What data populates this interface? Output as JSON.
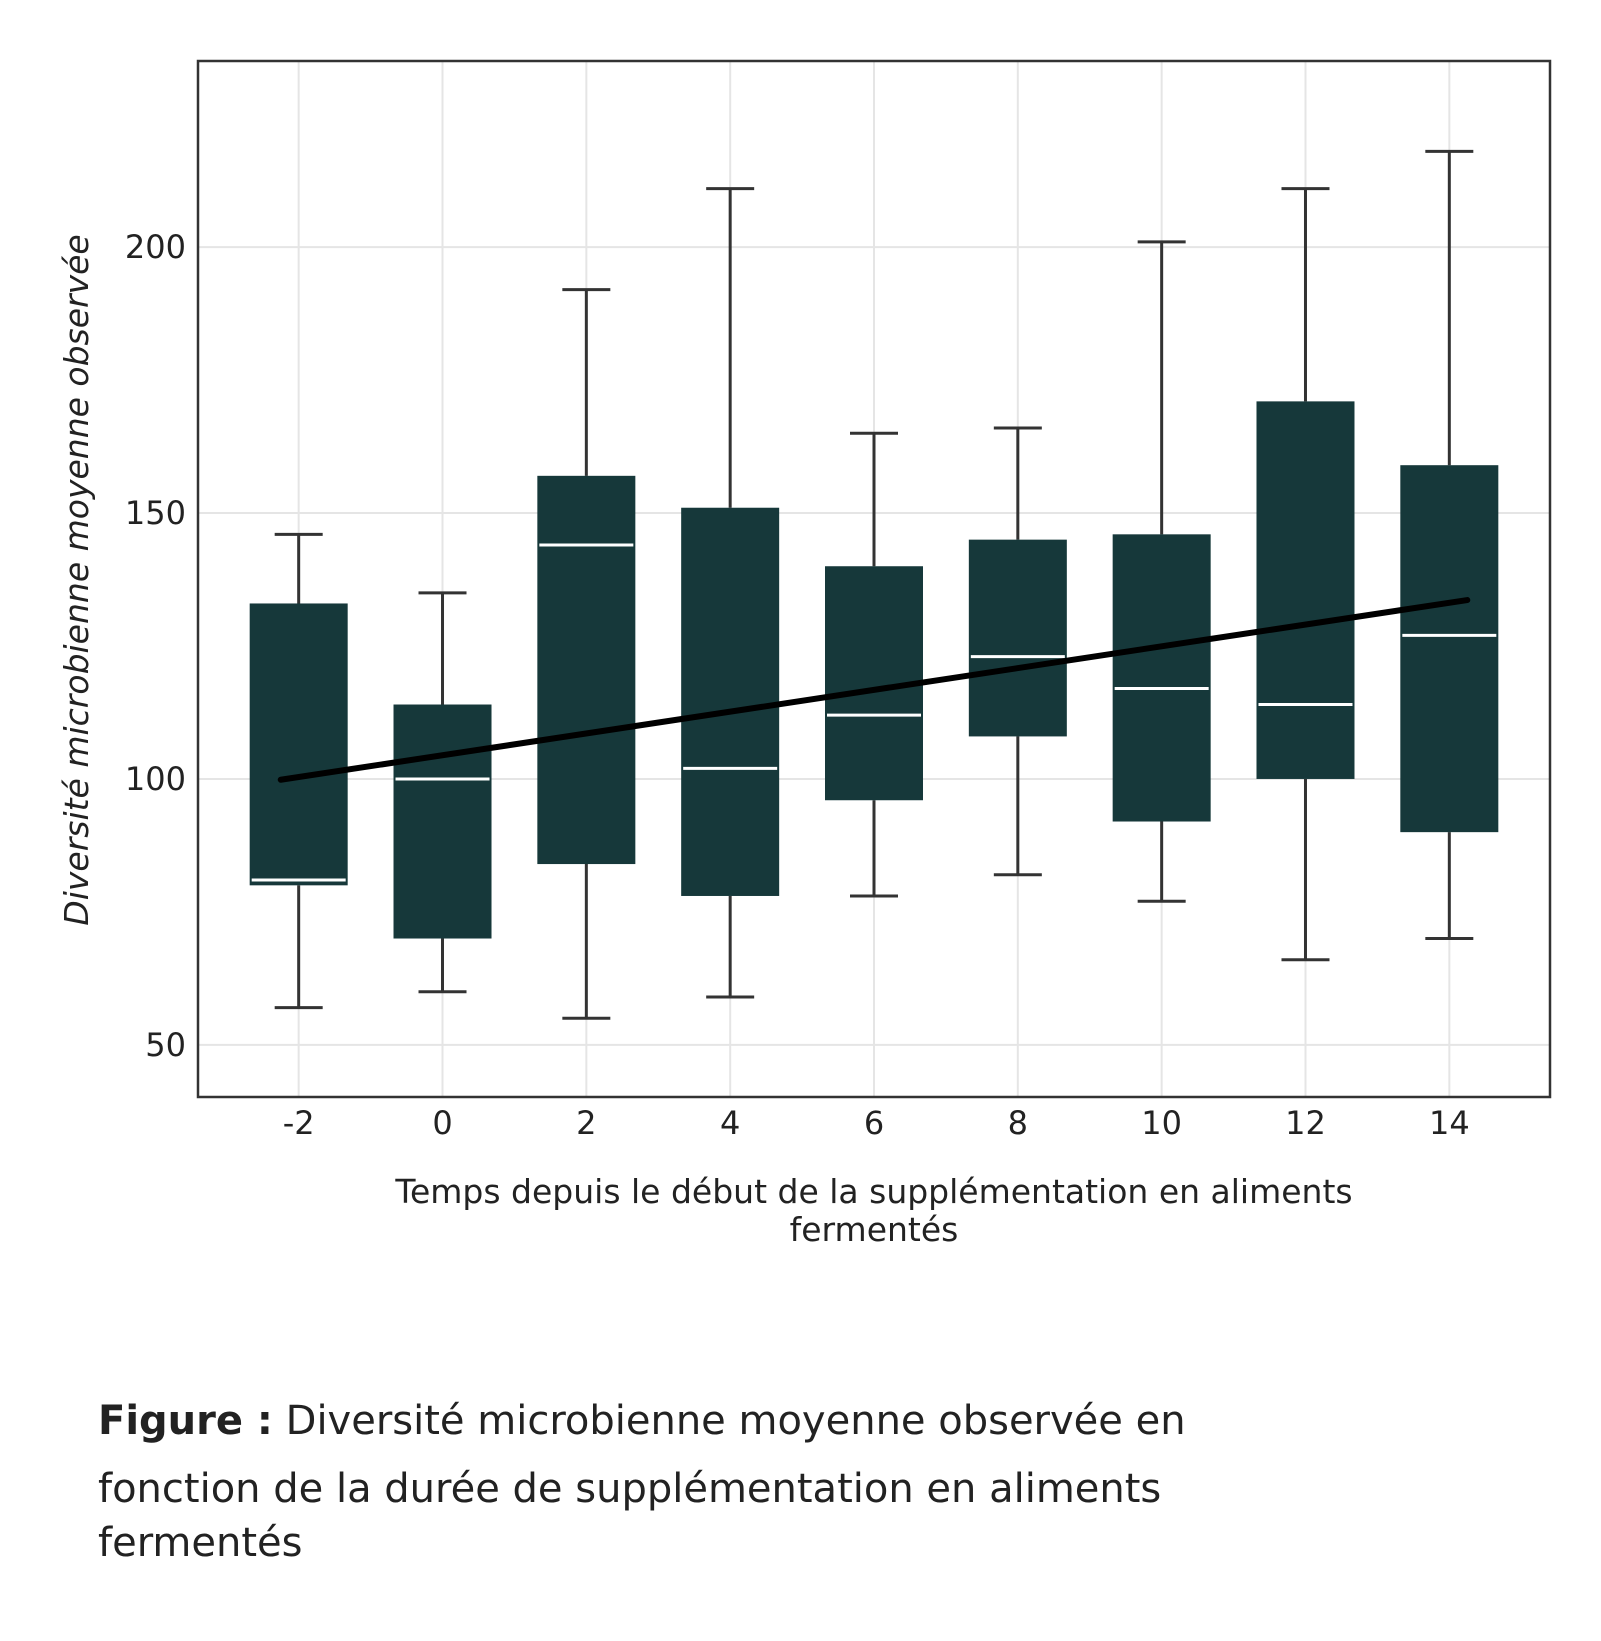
{
  "chart_data": {
    "type": "boxplot",
    "xlabel_lines": [
      "Temps depuis le début de la supplémentation en aliments",
      "fermentés"
    ],
    "ylabel": "Diversité microbienne moyenne observée",
    "x_categories": [
      "-2",
      "0",
      "2",
      "4",
      "6",
      "8",
      "10",
      "12",
      "14"
    ],
    "x_values": [
      -2,
      0,
      2,
      4,
      6,
      8,
      10,
      12,
      14
    ],
    "xlim": [
      -3.4,
      15.4
    ],
    "ylim": [
      40.2,
      235
    ],
    "yticks": [
      50,
      100,
      150,
      200
    ],
    "grid": true,
    "boxes": [
      {
        "x": -2,
        "whisker_low": 57,
        "q1": 80,
        "median": 81,
        "q3": 133,
        "whisker_high": 146
      },
      {
        "x": 0,
        "whisker_low": 60,
        "q1": 70,
        "median": 100,
        "q3": 114,
        "whisker_high": 135
      },
      {
        "x": 2,
        "whisker_low": 55,
        "q1": 84,
        "median": 144,
        "q3": 157,
        "whisker_high": 192
      },
      {
        "x": 4,
        "whisker_low": 59,
        "q1": 78,
        "median": 102,
        "q3": 151,
        "whisker_high": 211
      },
      {
        "x": 6,
        "whisker_low": 78,
        "q1": 96,
        "median": 112,
        "q3": 140,
        "whisker_high": 165
      },
      {
        "x": 8,
        "whisker_low": 82,
        "q1": 108,
        "median": 123,
        "q3": 145,
        "whisker_high": 166
      },
      {
        "x": 10,
        "whisker_low": 77,
        "q1": 92,
        "median": 117,
        "q3": 146,
        "whisker_high": 201
      },
      {
        "x": 12,
        "whisker_low": 66,
        "q1": 100,
        "median": 114,
        "q3": 171,
        "whisker_high": 211
      },
      {
        "x": 14,
        "whisker_low": 70,
        "q1": 90,
        "median": 127,
        "q3": 159,
        "whisker_high": 218
      }
    ],
    "trend_line": {
      "x": [
        -3.4,
        15.4
      ],
      "y": [
        97.5,
        136
      ]
    },
    "colors": {
      "box_fill": "#16383a",
      "median_line": "#ffffff",
      "whisker": "#333333",
      "trend_line": "#000000",
      "grid": "#e5e5e5",
      "panel_border": "#333333"
    }
  },
  "caption": {
    "label": "Figure :",
    "text_line1": "Diversité microbienne moyenne observée en",
    "text_line2": "fonction de la durée de supplémentation en aliments",
    "text_line3": "fermentés"
  }
}
